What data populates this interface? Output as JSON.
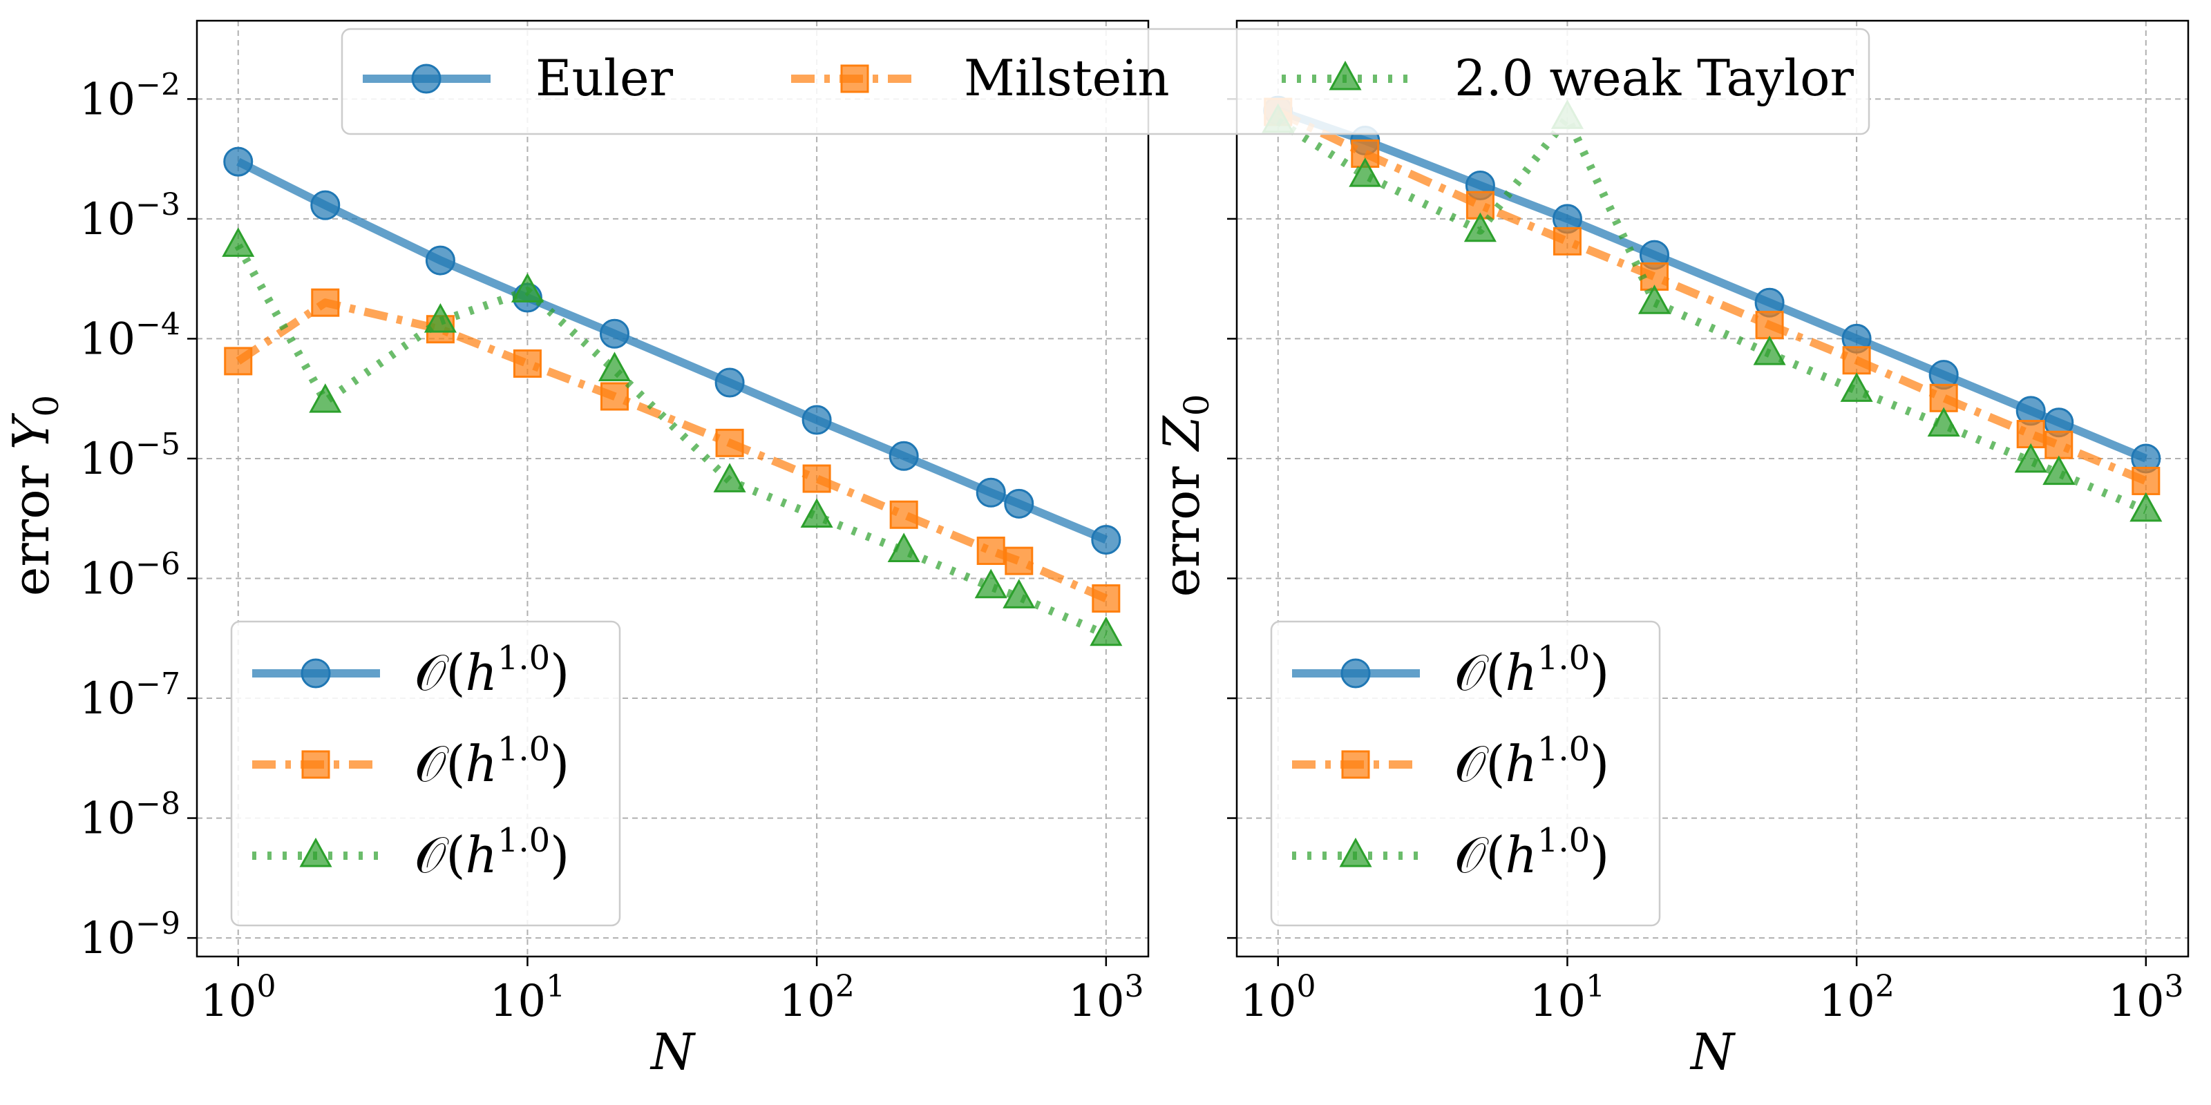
{
  "chart_data": [
    {
      "type": "line",
      "title": "",
      "xlabel": "N",
      "ylabel": "error Y0",
      "xscale": "log",
      "yscale": "log",
      "xlim": [
        0.72,
        1400
      ],
      "ylim": [
        7e-10,
        0.045
      ],
      "grid": true,
      "legend_position": "lower-left",
      "legend_labels": [
        "𝒪(h^1.0)",
        "𝒪(h^1.0)",
        "𝒪(h^1.0)"
      ],
      "xticks": [
        {
          "base": "10",
          "exp": "0",
          "value": 1
        },
        {
          "base": "10",
          "exp": "1",
          "value": 10
        },
        {
          "base": "10",
          "exp": "2",
          "value": 100
        },
        {
          "base": "10",
          "exp": "3",
          "value": 1000
        }
      ],
      "yticks": [
        {
          "base": "10",
          "exp": "−2",
          "value": 0.01
        },
        {
          "base": "10",
          "exp": "−3",
          "value": 0.001
        },
        {
          "base": "10",
          "exp": "−4",
          "value": 0.0001
        },
        {
          "base": "10",
          "exp": "−5",
          "value": 1e-05
        },
        {
          "base": "10",
          "exp": "−6",
          "value": 1e-06
        },
        {
          "base": "10",
          "exp": "−7",
          "value": 1e-07
        },
        {
          "base": "10",
          "exp": "−8",
          "value": 1e-08
        },
        {
          "base": "10",
          "exp": "−9",
          "value": 1e-09
        }
      ],
      "series": [
        {
          "name": "Euler",
          "x": [
            1,
            2,
            5,
            10,
            20,
            50,
            100,
            200,
            400,
            500,
            1000
          ],
          "y": [
            0.003,
            0.0013,
            0.00045,
            0.00022,
            0.00011,
            4.3e-05,
            2.1e-05,
            1.05e-05,
            5.2e-06,
            4.2e-06,
            2.1e-06
          ]
        },
        {
          "name": "Milstein",
          "x": [
            1,
            2,
            5,
            10,
            20,
            50,
            100,
            200,
            400,
            500,
            1000
          ],
          "y": [
            6.5e-05,
            0.0002,
            0.00012,
            6.2e-05,
            3.3e-05,
            1.35e-05,
            6.8e-06,
            3.4e-06,
            1.7e-06,
            1.4e-06,
            6.8e-07
          ]
        },
        {
          "name": "2.0 weak Taylor",
          "x": [
            1,
            2,
            5,
            10,
            20,
            50,
            100,
            200,
            400,
            500,
            1000
          ],
          "y": [
            0.0006,
            3e-05,
            0.00014,
            0.00025,
            5.5e-05,
            6.5e-06,
            3.3e-06,
            1.7e-06,
            8.5e-07,
            7e-07,
            3.4e-07
          ]
        }
      ]
    },
    {
      "type": "line",
      "title": "",
      "xlabel": "N",
      "ylabel": "error Z0",
      "xscale": "log",
      "yscale": "log",
      "xlim": [
        0.72,
        1400
      ],
      "ylim": [
        7e-10,
        0.045
      ],
      "grid": true,
      "legend_position": "lower-left",
      "legend_labels": [
        "𝒪(h^1.0)",
        "𝒪(h^1.0)",
        "𝒪(h^1.0)"
      ],
      "xticks": [
        {
          "base": "10",
          "exp": "0",
          "value": 1
        },
        {
          "base": "10",
          "exp": "1",
          "value": 10
        },
        {
          "base": "10",
          "exp": "2",
          "value": 100
        },
        {
          "base": "10",
          "exp": "3",
          "value": 1000
        }
      ],
      "series": [
        {
          "name": "Euler",
          "x": [
            1,
            2,
            5,
            10,
            20,
            50,
            100,
            200,
            400,
            500,
            1000
          ],
          "y": [
            0.008,
            0.0045,
            0.0019,
            0.001,
            0.0005,
            0.0002,
            0.0001,
            5e-05,
            2.5e-05,
            2e-05,
            1e-05
          ]
        },
        {
          "name": "Milstein",
          "x": [
            1,
            2,
            5,
            10,
            20,
            50,
            100,
            200,
            400,
            500,
            1000
          ],
          "y": [
            0.0078,
            0.0035,
            0.0013,
            0.00065,
            0.00033,
            0.00013,
            6.6e-05,
            3.2e-05,
            1.6e-05,
            1.3e-05,
            6.5e-06
          ]
        },
        {
          "name": "2.0 weak Taylor",
          "x": [
            1,
            2,
            5,
            10,
            20,
            50,
            100,
            200,
            400,
            500,
            1000
          ],
          "y": [
            0.0065,
            0.0023,
            0.0008,
            0.007,
            0.0002,
            7.5e-05,
            3.7e-05,
            1.9e-05,
            9.5e-06,
            7.5e-06,
            3.7e-06
          ]
        }
      ]
    }
  ],
  "legend_top": {
    "entries": [
      "Euler",
      "Milstein",
      "2.0 weak Taylor"
    ]
  },
  "style": {
    "colors": [
      "#1f77b4",
      "#ff7f0e",
      "#2ca02c"
    ]
  }
}
